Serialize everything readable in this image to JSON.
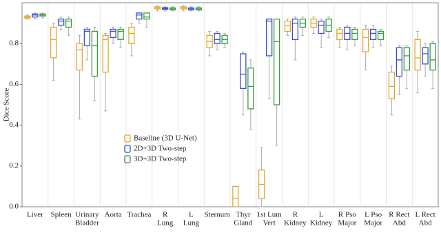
{
  "chart_data": {
    "type": "box",
    "y_label": "Dice Score",
    "categories": [
      [
        "Liver"
      ],
      [
        "Spleen"
      ],
      [
        "Urinary",
        "Bladder"
      ],
      [
        "Aorta"
      ],
      [
        "Trachea"
      ],
      [
        "R",
        "Lung"
      ],
      [
        "L",
        "Lung"
      ],
      [
        "Sternum"
      ],
      [
        "Thyr",
        "Gland"
      ],
      [
        "1st Lum",
        "Vert"
      ],
      [
        "R",
        "Kidney"
      ],
      [
        "L",
        "Kidney"
      ],
      [
        "R Pso",
        "Major"
      ],
      [
        "L Pso",
        "Major"
      ],
      [
        "R Rect",
        "Abd"
      ],
      [
        "L Rect",
        "Abd"
      ]
    ],
    "series": [
      {
        "name": "Baseline (3D U-Net)",
        "color": "#e3a72f",
        "min": [
          0.92,
          0.62,
          0.43,
          0.47,
          0.74,
          0.96,
          0.96,
          0.74,
          0.0,
          0.0,
          0.84,
          0.85,
          0.78,
          0.67,
          0.45,
          0.56
        ],
        "q1": [
          0.925,
          0.73,
          0.67,
          0.66,
          0.8,
          0.97,
          0.97,
          0.78,
          0.0,
          0.04,
          0.86,
          0.88,
          0.82,
          0.76,
          0.53,
          0.67
        ],
        "median": [
          0.93,
          0.82,
          0.77,
          0.82,
          0.85,
          0.975,
          0.975,
          0.81,
          0.04,
          0.11,
          0.89,
          0.9,
          0.85,
          0.83,
          0.59,
          0.73
        ],
        "q3": [
          0.935,
          0.88,
          0.8,
          0.84,
          0.88,
          0.98,
          0.98,
          0.84,
          0.1,
          0.18,
          0.91,
          0.92,
          0.87,
          0.87,
          0.66,
          0.82
        ],
        "max": [
          0.94,
          0.9,
          0.84,
          0.85,
          0.9,
          0.985,
          0.985,
          0.86,
          0.1,
          0.29,
          0.92,
          0.93,
          0.88,
          0.89,
          0.69,
          0.86
        ]
      },
      {
        "name": "2D+3D Two-step",
        "color": "#3a4fd0",
        "min": [
          0.92,
          0.87,
          0.72,
          0.8,
          0.9,
          0.96,
          0.96,
          0.77,
          0.45,
          0.53,
          0.72,
          0.78,
          0.77,
          0.78,
          0.55,
          0.64
        ],
        "q1": [
          0.93,
          0.89,
          0.79,
          0.83,
          0.92,
          0.968,
          0.965,
          0.8,
          0.58,
          0.74,
          0.82,
          0.85,
          0.82,
          0.82,
          0.64,
          0.7
        ],
        "median": [
          0.94,
          0.91,
          0.86,
          0.86,
          0.94,
          0.972,
          0.97,
          0.82,
          0.65,
          0.91,
          0.9,
          0.89,
          0.85,
          0.85,
          0.72,
          0.75
        ],
        "q3": [
          0.945,
          0.92,
          0.87,
          0.87,
          0.95,
          0.976,
          0.975,
          0.85,
          0.75,
          0.92,
          0.92,
          0.91,
          0.88,
          0.87,
          0.78,
          0.78
        ],
        "max": [
          0.95,
          0.93,
          0.88,
          0.88,
          0.95,
          0.98,
          0.98,
          0.86,
          0.76,
          0.92,
          0.93,
          0.92,
          0.89,
          0.89,
          0.79,
          0.8
        ]
      },
      {
        "name": "3D+3D Two-step",
        "color": "#3c9a3c",
        "min": [
          0.925,
          0.84,
          0.52,
          0.78,
          0.88,
          0.96,
          0.96,
          0.78,
          0.38,
          0.3,
          0.84,
          0.83,
          0.79,
          0.79,
          0.58,
          0.58
        ],
        "q1": [
          0.935,
          0.88,
          0.64,
          0.82,
          0.92,
          0.965,
          0.965,
          0.8,
          0.48,
          0.5,
          0.88,
          0.86,
          0.82,
          0.82,
          0.67,
          0.67
        ],
        "median": [
          0.94,
          0.91,
          0.79,
          0.86,
          0.93,
          0.97,
          0.97,
          0.82,
          0.59,
          0.81,
          0.9,
          0.89,
          0.85,
          0.85,
          0.74,
          0.72
        ],
        "q3": [
          0.945,
          0.92,
          0.86,
          0.87,
          0.95,
          0.975,
          0.975,
          0.84,
          0.68,
          0.92,
          0.92,
          0.92,
          0.87,
          0.86,
          0.78,
          0.8
        ],
        "max": [
          0.95,
          0.93,
          0.88,
          0.88,
          0.95,
          0.98,
          0.98,
          0.85,
          0.72,
          0.92,
          0.93,
          0.93,
          0.88,
          0.87,
          0.79,
          0.81
        ]
      }
    ],
    "ylim": [
      0,
      1
    ],
    "yticks": [
      {
        "value": 0,
        "label": "0.0"
      },
      0.2,
      0.4,
      0.6,
      0.8
    ],
    "separators": true
  }
}
